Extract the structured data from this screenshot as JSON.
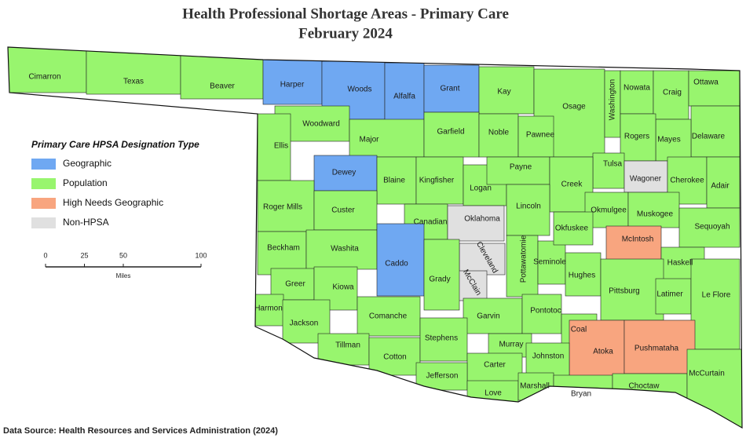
{
  "header": {
    "title": "Health Professional Shortage Areas - Primary Care",
    "subtitle": "February 2024"
  },
  "legend": {
    "title": "Primary Care HPSA Designation Type",
    "items": [
      {
        "label": "Geographic",
        "color": "#6fa8f2"
      },
      {
        "label": "Population",
        "color": "#98f56e"
      },
      {
        "label": "High Needs Geographic",
        "color": "#f8a57f"
      },
      {
        "label": "Non-HPSA",
        "color": "#e0e0e0"
      }
    ]
  },
  "scale": {
    "ticks": [
      0,
      25,
      50,
      100
    ],
    "unit": "Miles"
  },
  "counties": [
    {
      "name": "Cimarron",
      "color": "#98f56e"
    },
    {
      "name": "Texas",
      "color": "#98f56e"
    },
    {
      "name": "Beaver",
      "color": "#98f56e"
    },
    {
      "name": "Harper",
      "color": "#6fa8f2"
    },
    {
      "name": "Woods",
      "color": "#6fa8f2"
    },
    {
      "name": "Alfalfa",
      "color": "#6fa8f2"
    },
    {
      "name": "Grant",
      "color": "#6fa8f2"
    },
    {
      "name": "Kay",
      "color": "#98f56e"
    },
    {
      "name": "Osage",
      "color": "#98f56e"
    },
    {
      "name": "Washington",
      "color": "#98f56e"
    },
    {
      "name": "Nowata",
      "color": "#98f56e"
    },
    {
      "name": "Craig",
      "color": "#98f56e"
    },
    {
      "name": "Ottawa",
      "color": "#98f56e"
    },
    {
      "name": "Delaware",
      "color": "#98f56e"
    },
    {
      "name": "Mayes",
      "color": "#98f56e"
    },
    {
      "name": "Rogers",
      "color": "#98f56e"
    },
    {
      "name": "Woodward",
      "color": "#98f56e"
    },
    {
      "name": "Ellis",
      "color": "#98f56e"
    },
    {
      "name": "Major",
      "color": "#98f56e"
    },
    {
      "name": "Garfield",
      "color": "#98f56e"
    },
    {
      "name": "Noble",
      "color": "#98f56e"
    },
    {
      "name": "Pawnee",
      "color": "#98f56e"
    },
    {
      "name": "Tulsa",
      "color": "#98f56e"
    },
    {
      "name": "Wagoner",
      "color": "#e0e0e0"
    },
    {
      "name": "Cherokee",
      "color": "#98f56e"
    },
    {
      "name": "Adair",
      "color": "#98f56e"
    },
    {
      "name": "Dewey",
      "color": "#6fa8f2"
    },
    {
      "name": "Blaine",
      "color": "#98f56e"
    },
    {
      "name": "Kingfisher",
      "color": "#98f56e"
    },
    {
      "name": "Logan",
      "color": "#98f56e"
    },
    {
      "name": "Payne",
      "color": "#98f56e"
    },
    {
      "name": "Creek",
      "color": "#98f56e"
    },
    {
      "name": "Roger Mills",
      "color": "#98f56e"
    },
    {
      "name": "Custer",
      "color": "#98f56e"
    },
    {
      "name": "Canadian",
      "color": "#98f56e"
    },
    {
      "name": "Oklahoma",
      "color": "#e0e0e0"
    },
    {
      "name": "Lincoln",
      "color": "#98f56e"
    },
    {
      "name": "Okmulgee",
      "color": "#98f56e"
    },
    {
      "name": "Muskogee",
      "color": "#98f56e"
    },
    {
      "name": "Sequoyah",
      "color": "#98f56e"
    },
    {
      "name": "Beckham",
      "color": "#98f56e"
    },
    {
      "name": "Washita",
      "color": "#98f56e"
    },
    {
      "name": "Caddo",
      "color": "#6fa8f2"
    },
    {
      "name": "Cleveland",
      "color": "#e0e0e0"
    },
    {
      "name": "McClain",
      "color": "#e0e0e0"
    },
    {
      "name": "Pottawatomie",
      "color": "#98f56e"
    },
    {
      "name": "Seminole",
      "color": "#98f56e"
    },
    {
      "name": "Okfuskee",
      "color": "#98f56e"
    },
    {
      "name": "McIntosh",
      "color": "#f8a57f"
    },
    {
      "name": "Hughes",
      "color": "#98f56e"
    },
    {
      "name": "Haskell",
      "color": "#98f56e"
    },
    {
      "name": "Grady",
      "color": "#98f56e"
    },
    {
      "name": "Greer",
      "color": "#98f56e"
    },
    {
      "name": "Kiowa",
      "color": "#98f56e"
    },
    {
      "name": "Harmon",
      "color": "#98f56e"
    },
    {
      "name": "Pittsburg",
      "color": "#98f56e"
    },
    {
      "name": "Latimer",
      "color": "#98f56e"
    },
    {
      "name": "Le Flore",
      "color": "#98f56e"
    },
    {
      "name": "Jackson",
      "color": "#98f56e"
    },
    {
      "name": "Comanche",
      "color": "#98f56e"
    },
    {
      "name": "Garvin",
      "color": "#98f56e"
    },
    {
      "name": "Pontotoc",
      "color": "#98f56e"
    },
    {
      "name": "Coal",
      "color": "#98f56e"
    },
    {
      "name": "Atoka",
      "color": "#f8a57f"
    },
    {
      "name": "Pushmataha",
      "color": "#f8a57f"
    },
    {
      "name": "Tillman",
      "color": "#98f56e"
    },
    {
      "name": "Cotton",
      "color": "#98f56e"
    },
    {
      "name": "Stephens",
      "color": "#98f56e"
    },
    {
      "name": "Murray",
      "color": "#98f56e"
    },
    {
      "name": "Johnston",
      "color": "#98f56e"
    },
    {
      "name": "Carter",
      "color": "#98f56e"
    },
    {
      "name": "Jefferson",
      "color": "#98f56e"
    },
    {
      "name": "Love",
      "color": "#98f56e"
    },
    {
      "name": "Marshall",
      "color": "#98f56e"
    },
    {
      "name": "Bryan",
      "color": "#98f56e"
    },
    {
      "name": "Choctaw",
      "color": "#98f56e"
    },
    {
      "name": "McCurtain",
      "color": "#98f56e"
    }
  ],
  "footer": {
    "source": "Data Source: Health Resources and Services Administration (2024)"
  }
}
